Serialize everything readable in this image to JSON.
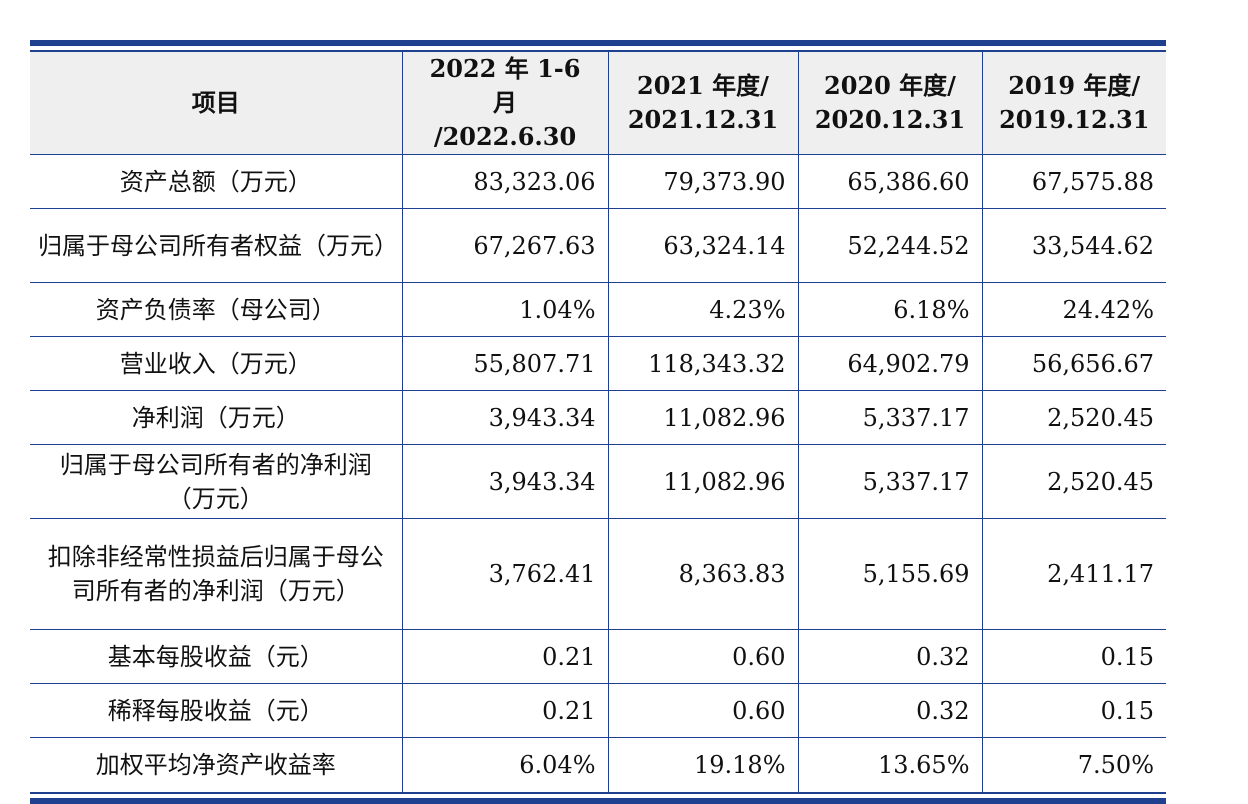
{
  "header": {
    "item": "项目",
    "col1": [
      "2022 年 1-6 月",
      "/2022.6.30"
    ],
    "col2": [
      "2021 年度/",
      "2021.12.31"
    ],
    "col3": [
      "2020 年度/",
      "2020.12.31"
    ],
    "col4": [
      "2019 年度/",
      "2019.12.31"
    ]
  },
  "rows": [
    {
      "label": "资产总额（万元）",
      "v1": "83,323.06",
      "v2": "79,373.90",
      "v3": "65,386.60",
      "v4": "67,575.88"
    },
    {
      "label": "归属于母公司所有者权益（万元）",
      "v1": "67,267.63",
      "v2": "63,324.14",
      "v3": "52,244.52",
      "v4": "33,544.62"
    },
    {
      "label": "资产负债率（母公司）",
      "v1": "1.04%",
      "v2": "4.23%",
      "v3": "6.18%",
      "v4": "24.42%"
    },
    {
      "label": "营业收入（万元）",
      "v1": "55,807.71",
      "v2": "118,343.32",
      "v3": "64,902.79",
      "v4": "56,656.67"
    },
    {
      "label": "净利润（万元）",
      "v1": "3,943.34",
      "v2": "11,082.96",
      "v3": "5,337.17",
      "v4": "2,520.45"
    },
    {
      "label": "归属于母公司所有者的净利润（万元）",
      "v1": "3,943.34",
      "v2": "11,082.96",
      "v3": "5,337.17",
      "v4": "2,520.45"
    },
    {
      "label": "扣除非经常性损益后归属于母公司所有者的净利润（万元）",
      "v1": "3,762.41",
      "v2": "8,363.83",
      "v3": "5,155.69",
      "v4": "2,411.17"
    },
    {
      "label": "基本每股收益（元）",
      "v1": "0.21",
      "v2": "0.60",
      "v3": "0.32",
      "v4": "0.15"
    },
    {
      "label": "稀释每股收益（元）",
      "v1": "0.21",
      "v2": "0.60",
      "v3": "0.32",
      "v4": "0.15"
    },
    {
      "label": "加权平均净资产收益率",
      "v1": "6.04%",
      "v2": "19.18%",
      "v3": "13.65%",
      "v4": "7.50%"
    }
  ]
}
